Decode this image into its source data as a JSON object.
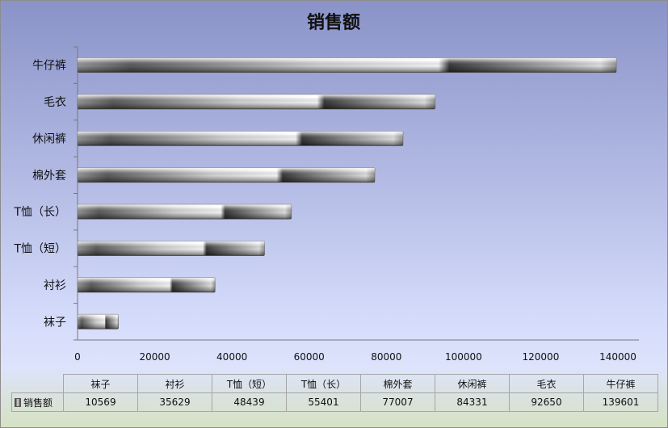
{
  "chart_data": {
    "type": "bar",
    "orientation": "horizontal",
    "title": "销售额",
    "categories": [
      "牛仔裤",
      "毛衣",
      "休闲裤",
      "棉外套",
      "T恤（长）",
      "T恤（短）",
      "衬衫",
      "袜子"
    ],
    "series": [
      {
        "name": "销售额",
        "values": [
          139601,
          92650,
          84331,
          77007,
          55401,
          48439,
          35629,
          10569
        ]
      }
    ],
    "xlim": [
      0,
      140000
    ],
    "x_ticks": [
      "0",
      "20000",
      "40000",
      "60000",
      "80000",
      "100000",
      "120000",
      "140000"
    ],
    "grid": false,
    "data_table": {
      "categories": [
        "袜子",
        "衬衫",
        "T恤（短）",
        "T恤（长）",
        "棉外套",
        "休闲裤",
        "毛衣",
        "牛仔裤"
      ],
      "series_name": "销售额",
      "values": [
        "10569",
        "35629",
        "48439",
        "55401",
        "77007",
        "84331",
        "92650",
        "139601"
      ]
    }
  }
}
